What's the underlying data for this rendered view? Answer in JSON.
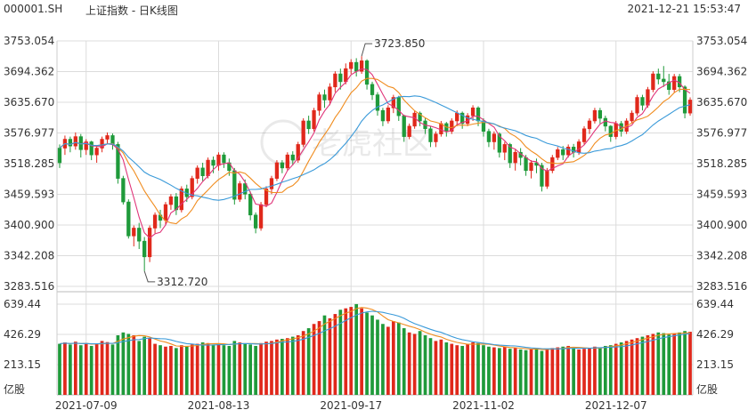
{
  "header": {
    "symbol": "000001.SH",
    "title": "上证指数 - 日K线图",
    "timestamp": "2021-12-21 15:53:47"
  },
  "watermark": {
    "text": "老虎社区",
    "icon": "tiger-logo-icon"
  },
  "colors": {
    "up": "#e0281b",
    "down": "#1f9a3a",
    "ma5": "#e0357a",
    "ma10": "#f08c1e",
    "ma20": "#3a9ad9",
    "grid": "#dcdcdc"
  },
  "chart_data": [
    {
      "type": "candlestick",
      "price_axis_ticks": [
        "3753.054",
        "3694.362",
        "3635.670",
        "3576.977",
        "3518.285",
        "3459.593",
        "3400.900",
        "3342.208",
        "3283.516"
      ],
      "ylim": [
        3283.516,
        3753.054
      ],
      "annotations": [
        {
          "label": "3723.850",
          "bar_index": 57
        },
        {
          "label": "3312.720",
          "bar_index": 16
        }
      ],
      "x_tick_labels": [
        {
          "label": "2021-07-09",
          "bar_index": 5
        },
        {
          "label": "2021-08-13",
          "bar_index": 30
        },
        {
          "label": "2021-09-17",
          "bar_index": 55
        },
        {
          "label": "2021-11-02",
          "bar_index": 80
        },
        {
          "label": "2021-12-07",
          "bar_index": 105
        }
      ],
      "series_lines": [
        "ma5",
        "ma10",
        "ma20"
      ],
      "bars": [
        [
          3520,
          3548,
          3510,
          3555,
          "D"
        ],
        [
          3548,
          3565,
          3535,
          3572,
          "U"
        ],
        [
          3565,
          3552,
          3540,
          3570,
          "D"
        ],
        [
          3552,
          3570,
          3545,
          3578,
          "U"
        ],
        [
          3570,
          3545,
          3530,
          3575,
          "D"
        ],
        [
          3545,
          3560,
          3535,
          3565,
          "U"
        ],
        [
          3560,
          3535,
          3525,
          3562,
          "D"
        ],
        [
          3535,
          3548,
          3520,
          3552,
          "U"
        ],
        [
          3548,
          3565,
          3540,
          3570,
          "U"
        ],
        [
          3565,
          3572,
          3555,
          3578,
          "U"
        ],
        [
          3572,
          3555,
          3545,
          3576,
          "D"
        ],
        [
          3555,
          3490,
          3480,
          3560,
          "D"
        ],
        [
          3490,
          3445,
          3440,
          3495,
          "D"
        ],
        [
          3445,
          3380,
          3375,
          3450,
          "D"
        ],
        [
          3380,
          3395,
          3360,
          3400,
          "U"
        ],
        [
          3395,
          3370,
          3355,
          3405,
          "D"
        ],
        [
          3370,
          3340,
          3312.72,
          3378,
          "D"
        ],
        [
          3340,
          3395,
          3330,
          3400,
          "U"
        ],
        [
          3395,
          3420,
          3385,
          3425,
          "U"
        ],
        [
          3420,
          3410,
          3395,
          3430,
          "D"
        ],
        [
          3410,
          3440,
          3400,
          3445,
          "U"
        ],
        [
          3440,
          3455,
          3430,
          3460,
          "U"
        ],
        [
          3455,
          3430,
          3420,
          3462,
          "D"
        ],
        [
          3430,
          3470,
          3425,
          3475,
          "U"
        ],
        [
          3470,
          3455,
          3445,
          3478,
          "D"
        ],
        [
          3455,
          3490,
          3450,
          3495,
          "U"
        ],
        [
          3490,
          3510,
          3480,
          3515,
          "U"
        ],
        [
          3510,
          3495,
          3485,
          3520,
          "D"
        ],
        [
          3495,
          3525,
          3490,
          3530,
          "U"
        ],
        [
          3525,
          3515,
          3500,
          3532,
          "D"
        ],
        [
          3515,
          3535,
          3505,
          3540,
          "U"
        ],
        [
          3535,
          3520,
          3510,
          3540,
          "D"
        ],
        [
          3520,
          3505,
          3495,
          3528,
          "D"
        ],
        [
          3505,
          3450,
          3440,
          3510,
          "D"
        ],
        [
          3450,
          3480,
          3445,
          3485,
          "U"
        ],
        [
          3480,
          3460,
          3450,
          3488,
          "D"
        ],
        [
          3460,
          3420,
          3410,
          3465,
          "D"
        ],
        [
          3420,
          3395,
          3385,
          3425,
          "D"
        ],
        [
          3395,
          3440,
          3390,
          3445,
          "U"
        ],
        [
          3440,
          3470,
          3435,
          3475,
          "U"
        ],
        [
          3470,
          3490,
          3460,
          3495,
          "U"
        ],
        [
          3490,
          3520,
          3485,
          3525,
          "U"
        ],
        [
          3520,
          3510,
          3500,
          3525,
          "D"
        ],
        [
          3510,
          3535,
          3505,
          3540,
          "U"
        ],
        [
          3535,
          3525,
          3515,
          3542,
          "D"
        ],
        [
          3525,
          3555,
          3520,
          3560,
          "U"
        ],
        [
          3555,
          3600,
          3550,
          3605,
          "U"
        ],
        [
          3600,
          3585,
          3575,
          3610,
          "D"
        ],
        [
          3585,
          3620,
          3580,
          3625,
          "U"
        ],
        [
          3620,
          3650,
          3610,
          3655,
          "U"
        ],
        [
          3650,
          3640,
          3625,
          3660,
          "D"
        ],
        [
          3640,
          3665,
          3630,
          3672,
          "U"
        ],
        [
          3665,
          3690,
          3655,
          3695,
          "U"
        ],
        [
          3690,
          3675,
          3660,
          3700,
          "D"
        ],
        [
          3675,
          3700,
          3670,
          3710,
          "U"
        ],
        [
          3700,
          3712,
          3690,
          3718,
          "U"
        ],
        [
          3712,
          3695,
          3685,
          3720,
          "D"
        ],
        [
          3695,
          3715,
          3690,
          3723.85,
          "U"
        ],
        [
          3715,
          3670,
          3660,
          3718,
          "D"
        ],
        [
          3670,
          3650,
          3640,
          3675,
          "D"
        ],
        [
          3650,
          3620,
          3610,
          3655,
          "D"
        ],
        [
          3620,
          3600,
          3590,
          3625,
          "D"
        ],
        [
          3600,
          3625,
          3595,
          3630,
          "U"
        ],
        [
          3625,
          3645,
          3615,
          3650,
          "U"
        ],
        [
          3645,
          3610,
          3600,
          3648,
          "D"
        ],
        [
          3610,
          3570,
          3560,
          3612,
          "D"
        ],
        [
          3570,
          3590,
          3565,
          3595,
          "U"
        ],
        [
          3590,
          3615,
          3585,
          3620,
          "U"
        ],
        [
          3615,
          3600,
          3590,
          3618,
          "D"
        ],
        [
          3600,
          3585,
          3575,
          3605,
          "D"
        ],
        [
          3585,
          3560,
          3550,
          3590,
          "D"
        ],
        [
          3560,
          3575,
          3550,
          3580,
          "U"
        ],
        [
          3575,
          3595,
          3570,
          3600,
          "U"
        ],
        [
          3595,
          3580,
          3570,
          3598,
          "D"
        ],
        [
          3580,
          3600,
          3575,
          3605,
          "U"
        ],
        [
          3600,
          3615,
          3590,
          3620,
          "U"
        ],
        [
          3615,
          3595,
          3585,
          3618,
          "D"
        ],
        [
          3595,
          3610,
          3590,
          3615,
          "U"
        ],
        [
          3610,
          3625,
          3600,
          3630,
          "U"
        ],
        [
          3625,
          3600,
          3590,
          3628,
          "D"
        ],
        [
          3600,
          3580,
          3570,
          3605,
          "D"
        ],
        [
          3580,
          3560,
          3550,
          3585,
          "D"
        ],
        [
          3560,
          3575,
          3545,
          3580,
          "U"
        ],
        [
          3575,
          3540,
          3530,
          3578,
          "D"
        ],
        [
          3540,
          3555,
          3525,
          3560,
          "U"
        ],
        [
          3555,
          3520,
          3510,
          3558,
          "D"
        ],
        [
          3520,
          3540,
          3505,
          3545,
          "U"
        ],
        [
          3540,
          3530,
          3515,
          3548,
          "D"
        ],
        [
          3530,
          3505,
          3495,
          3535,
          "D"
        ],
        [
          3505,
          3520,
          3490,
          3525,
          "U"
        ],
        [
          3520,
          3515,
          3500,
          3528,
          "D"
        ],
        [
          3515,
          3475,
          3465,
          3520,
          "D"
        ],
        [
          3475,
          3505,
          3470,
          3510,
          "U"
        ],
        [
          3505,
          3530,
          3500,
          3535,
          "U"
        ],
        [
          3530,
          3545,
          3525,
          3550,
          "U"
        ],
        [
          3545,
          3535,
          3525,
          3552,
          "D"
        ],
        [
          3535,
          3550,
          3530,
          3555,
          "U"
        ],
        [
          3550,
          3540,
          3530,
          3556,
          "D"
        ],
        [
          3540,
          3560,
          3535,
          3565,
          "U"
        ],
        [
          3560,
          3585,
          3555,
          3590,
          "U"
        ],
        [
          3585,
          3600,
          3575,
          3605,
          "U"
        ],
        [
          3600,
          3620,
          3595,
          3625,
          "U"
        ],
        [
          3620,
          3605,
          3595,
          3625,
          "D"
        ],
        [
          3605,
          3590,
          3580,
          3610,
          "D"
        ],
        [
          3590,
          3570,
          3560,
          3592,
          "D"
        ],
        [
          3570,
          3595,
          3565,
          3600,
          "U"
        ],
        [
          3595,
          3580,
          3570,
          3600,
          "D"
        ],
        [
          3580,
          3600,
          3575,
          3605,
          "U"
        ],
        [
          3600,
          3615,
          3595,
          3620,
          "U"
        ],
        [
          3615,
          3645,
          3610,
          3650,
          "U"
        ],
        [
          3645,
          3630,
          3620,
          3650,
          "D"
        ],
        [
          3630,
          3660,
          3625,
          3665,
          "U"
        ],
        [
          3660,
          3690,
          3655,
          3695,
          "U"
        ],
        [
          3690,
          3680,
          3670,
          3700,
          "D"
        ],
        [
          3680,
          3675,
          3665,
          3705,
          "D"
        ],
        [
          3675,
          3660,
          3650,
          3690,
          "D"
        ],
        [
          3660,
          3685,
          3655,
          3690,
          "U"
        ],
        [
          3685,
          3665,
          3655,
          3690,
          "D"
        ],
        [
          3665,
          3615,
          3605,
          3668,
          "D"
        ],
        [
          3615,
          3640,
          3610,
          3645,
          "U"
        ]
      ]
    },
    {
      "type": "bar",
      "volume_axis_ticks": [
        "639.44",
        "426.29",
        "213.15"
      ],
      "unit_label": "亿股",
      "ylim": [
        0,
        639.44
      ],
      "series_lines": [
        "vma5",
        "vma10"
      ],
      "values": [
        360,
        370,
        355,
        375,
        350,
        365,
        345,
        360,
        380,
        372,
        355,
        420,
        440,
        430,
        420,
        380,
        410,
        400,
        360,
        350,
        340,
        345,
        330,
        350,
        345,
        355,
        360,
        370,
        365,
        355,
        360,
        350,
        345,
        380,
        370,
        360,
        355,
        345,
        365,
        375,
        380,
        390,
        395,
        400,
        410,
        420,
        450,
        470,
        500,
        520,
        560,
        540,
        570,
        600,
        610,
        620,
        640,
        610,
        580,
        560,
        530,
        500,
        480,
        520,
        510,
        470,
        440,
        430,
        450,
        420,
        400,
        380,
        390,
        370,
        360,
        350,
        345,
        360,
        370,
        365,
        350,
        340,
        335,
        330,
        340,
        325,
        330,
        320,
        315,
        325,
        330,
        310,
        320,
        330,
        335,
        340,
        345,
        330,
        320,
        325,
        330,
        340,
        335,
        345,
        350,
        360,
        370,
        380,
        390,
        400,
        410,
        420,
        430,
        440,
        435,
        425,
        430,
        440,
        450,
        445
      ]
    }
  ]
}
